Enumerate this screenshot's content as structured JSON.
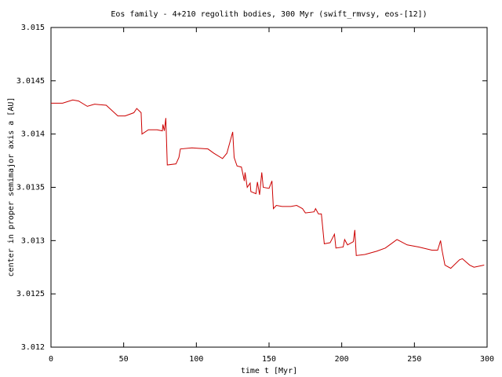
{
  "chart_data": {
    "type": "line",
    "title": "Eos family - 4+210 regolith bodies, 300 Myr (swift_rmvsy, eos-[12])",
    "x_label": "time t [Myr]",
    "y_label": "center in proper semimajor axis a [AU]",
    "color": "#cc0000",
    "x": [
      0,
      8,
      15,
      19,
      25,
      30,
      38,
      46,
      51,
      57,
      59,
      62,
      62.6,
      67,
      73,
      76.6,
      77,
      78,
      79,
      80,
      86,
      88,
      89,
      97,
      108,
      112,
      118,
      121,
      125,
      126,
      128,
      131,
      133,
      133.5,
      135,
      137,
      137.5,
      141,
      142,
      143.5,
      145,
      146,
      150,
      152,
      153,
      155,
      159,
      165,
      169,
      173,
      175,
      181,
      182,
      184,
      186,
      188,
      192,
      195,
      196,
      201,
      202,
      204,
      208,
      209,
      210,
      216,
      224,
      230,
      235,
      238,
      245,
      253,
      262,
      266,
      268,
      269,
      271,
      275,
      281,
      283,
      288,
      291,
      298
    ],
    "values": [
      3.01429,
      3.01429,
      3.01432,
      3.01431,
      3.01426,
      3.01428,
      3.01427,
      3.01417,
      3.01417,
      3.0142,
      3.01424,
      3.0142,
      3.014,
      3.01404,
      3.01404,
      3.01403,
      3.01409,
      3.01403,
      3.01415,
      3.01371,
      3.01372,
      3.01378,
      3.01386,
      3.01387,
      3.01386,
      3.01382,
      3.01377,
      3.01382,
      3.01402,
      3.01378,
      3.0137,
      3.01369,
      3.01356,
      3.01364,
      3.0135,
      3.01354,
      3.01346,
      3.01344,
      3.01355,
      3.01343,
      3.01364,
      3.0135,
      3.01349,
      3.01356,
      3.0133,
      3.01333,
      3.01332,
      3.01332,
      3.01333,
      3.0133,
      3.01326,
      3.01327,
      3.0133,
      3.01325,
      3.01325,
      3.01297,
      3.01298,
      3.01306,
      3.01293,
      3.01294,
      3.01301,
      3.01296,
      3.01299,
      3.0131,
      3.01286,
      3.01287,
      3.0129,
      3.01293,
      3.01298,
      3.01301,
      3.01296,
      3.01294,
      3.01291,
      3.01291,
      3.013,
      3.01291,
      3.01277,
      3.01274,
      3.01282,
      3.01283,
      3.01277,
      3.01275,
      3.01277
    ],
    "xlim": [
      0,
      300
    ],
    "xticks": [
      0,
      50,
      100,
      150,
      200,
      250,
      300
    ],
    "ylim": [
      3.012,
      3.015
    ],
    "yticks": [
      3.012,
      3.0125,
      3.013,
      3.0135,
      3.014,
      3.0145,
      3.015
    ]
  }
}
